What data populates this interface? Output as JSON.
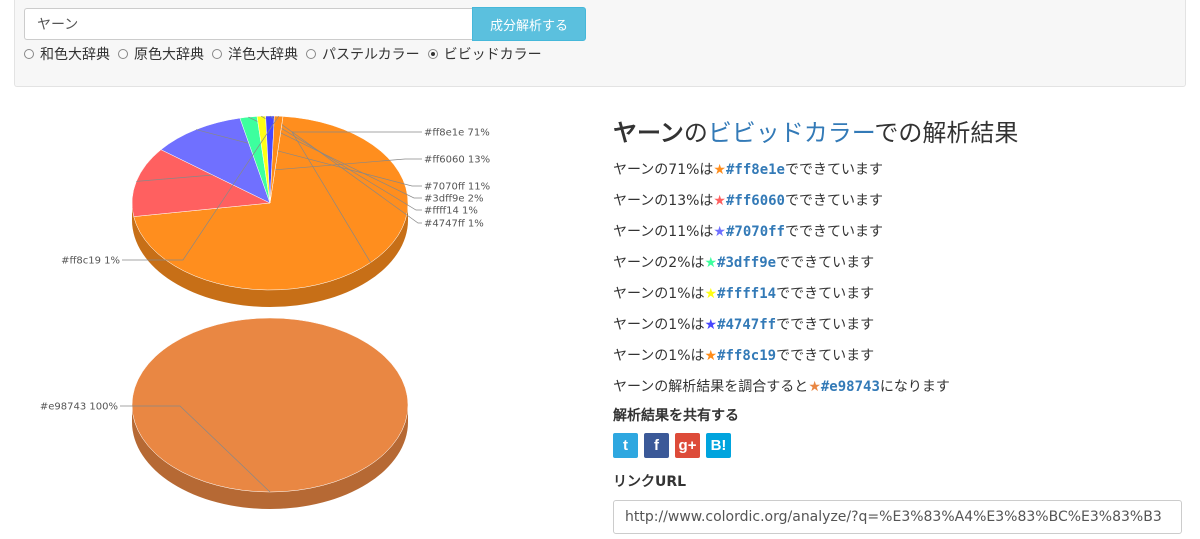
{
  "search": {
    "query": "ヤーン",
    "button_label": "成分解析する"
  },
  "dictionaries": [
    {
      "label": "和色大辞典",
      "selected": false
    },
    {
      "label": "原色大辞典",
      "selected": false
    },
    {
      "label": "洋色大辞典",
      "selected": false
    },
    {
      "label": "パステルカラー",
      "selected": false
    },
    {
      "label": "ビビッドカラー",
      "selected": true
    }
  ],
  "result": {
    "title_word": "ヤーン",
    "title_no": "の",
    "title_dict": "ビビッドカラー",
    "title_suffix": "での解析結果",
    "lines": [
      {
        "prefix": "ヤーンの71%は",
        "star_color": "#ff8e1e",
        "hex": "#ff8e1e",
        "suffix": "でできています"
      },
      {
        "prefix": "ヤーンの13%は",
        "star_color": "#ff6060",
        "hex": "#ff6060",
        "suffix": "でできています"
      },
      {
        "prefix": "ヤーンの11%は",
        "star_color": "#7070ff",
        "hex": "#7070ff",
        "suffix": "でできています"
      },
      {
        "prefix": "ヤーンの2%は",
        "star_color": "#3dff9e",
        "hex": "#3dff9e",
        "suffix": "でできています"
      },
      {
        "prefix": "ヤーンの1%は",
        "star_color": "#ffff14",
        "hex": "#ffff14",
        "suffix": "でできています"
      },
      {
        "prefix": "ヤーンの1%は",
        "star_color": "#4747ff",
        "hex": "#4747ff",
        "suffix": "でできています"
      },
      {
        "prefix": "ヤーンの1%は",
        "star_color": "#ff8c19",
        "hex": "#ff8c19",
        "suffix": "でできています"
      },
      {
        "prefix": "ヤーンの解析結果を調合すると",
        "star_color": "#e98743",
        "hex": "#e98743",
        "suffix": "になります"
      }
    ]
  },
  "share": {
    "title": "解析結果を共有する",
    "icons": [
      {
        "name": "twitter-icon",
        "glyph": "t",
        "color": "#2ea7e0"
      },
      {
        "name": "facebook-icon",
        "glyph": "f",
        "color": "#3b5998"
      },
      {
        "name": "google-plus-icon",
        "glyph": "g+",
        "color": "#dd4b39"
      },
      {
        "name": "hatena-bookmark-icon",
        "glyph": "B!",
        "color": "#00a4de"
      }
    ]
  },
  "link": {
    "title": "リンクURL",
    "url": "http://www.colordic.org/analyze/?q=%E3%83%A4%E3%83%BC%E3%83%B3"
  },
  "chart_data": [
    {
      "type": "pie",
      "series": [
        {
          "label": "#ff8e1e 71%",
          "value": 71,
          "color": "#ff8e1e"
        },
        {
          "label": "#ff6060 13%",
          "value": 13,
          "color": "#ff6060"
        },
        {
          "label": "#7070ff 11%",
          "value": 11,
          "color": "#7070ff"
        },
        {
          "label": "#3dff9e 2%",
          "value": 2,
          "color": "#3dff9e"
        },
        {
          "label": "#ffff14 1%",
          "value": 1,
          "color": "#ffff14"
        },
        {
          "label": "#4747ff 1%",
          "value": 1,
          "color": "#4747ff"
        },
        {
          "label": "#ff8c19 1%",
          "value": 1,
          "color": "#ff8c19"
        }
      ]
    },
    {
      "type": "pie",
      "series": [
        {
          "label": "#e98743 100%",
          "value": 100,
          "color": "#e98743"
        }
      ]
    }
  ]
}
